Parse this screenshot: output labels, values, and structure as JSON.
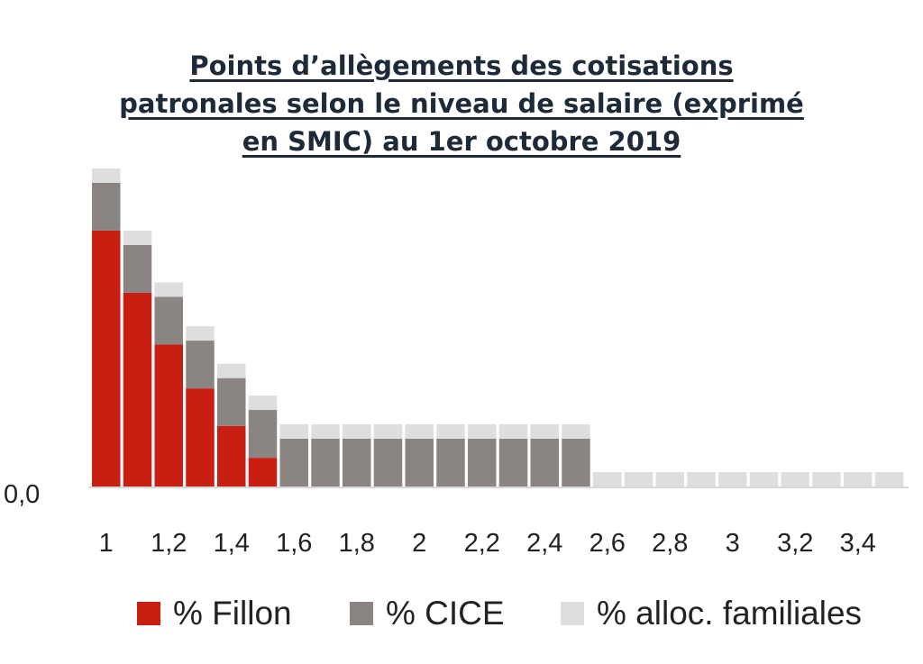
{
  "chart_data": {
    "type": "bar",
    "stacked": true,
    "title_lines": [
      "Points d’allègements des cotisations",
      "patronales selon le niveau de salaire (exprimé",
      "en SMIC) au 1er octobre 2019"
    ],
    "categories": [
      1,
      1.1,
      1.2,
      1.3,
      1.4,
      1.5,
      1.6,
      1.7,
      1.8,
      1.9,
      2,
      2.1,
      2.2,
      2.3,
      2.4,
      2.5,
      2.6,
      2.7,
      2.8,
      2.9,
      3,
      3.1,
      3.2,
      3.3,
      3.4,
      3.5
    ],
    "x_tick_labels": [
      "1",
      "1,2",
      "1,4",
      "1,6",
      "1,8",
      "2",
      "2,2",
      "2,4",
      "2,6",
      "2,8",
      "3",
      "3,2",
      "3,4"
    ],
    "y_tick_labels": [
      "0,0"
    ],
    "ylim": [
      0,
      42
    ],
    "grid": false,
    "legend_position": "bottom",
    "series": [
      {
        "name": "% Fillon",
        "color": "#c91f12",
        "values": [
          32.1,
          24.3,
          17.8,
          12.3,
          7.6,
          3.6,
          0,
          0,
          0,
          0,
          0,
          0,
          0,
          0,
          0,
          0,
          0,
          0,
          0,
          0,
          0,
          0,
          0,
          0,
          0,
          0
        ]
      },
      {
        "name": "% CICE",
        "color": "#8a8583",
        "values": [
          6,
          6,
          6,
          6,
          6,
          6,
          6,
          6,
          6,
          6,
          6,
          6,
          6,
          6,
          6,
          6,
          0,
          0,
          0,
          0,
          0,
          0,
          0,
          0,
          0,
          0
        ]
      },
      {
        "name": "% alloc. familiales",
        "color": "#dedede",
        "values": [
          1.8,
          1.8,
          1.8,
          1.8,
          1.8,
          1.8,
          1.8,
          1.8,
          1.8,
          1.8,
          1.8,
          1.8,
          1.8,
          1.8,
          1.8,
          1.8,
          1.8,
          1.8,
          1.8,
          1.8,
          1.8,
          1.8,
          1.8,
          1.8,
          1.8,
          1.8
        ]
      }
    ]
  }
}
